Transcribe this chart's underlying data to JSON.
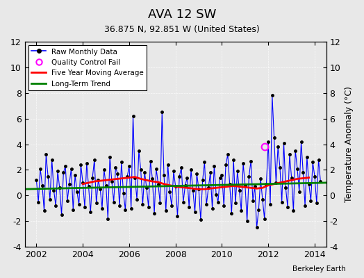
{
  "title": "AVA 12 SW",
  "subtitle": "36.875 N, 92.851 W (United States)",
  "credit": "Berkeley Earth",
  "ylabel": "Temperature Anomaly (°C)",
  "xlim": [
    2001.5,
    2014.5
  ],
  "ylim": [
    -4,
    12
  ],
  "yticks": [
    -4,
    -2,
    0,
    2,
    4,
    6,
    8,
    10,
    12
  ],
  "xticks": [
    2002,
    2004,
    2006,
    2008,
    2010,
    2012,
    2014
  ],
  "raw_color": "blue",
  "raw_marker_color": "black",
  "qc_color": "magenta",
  "moving_avg_color": "red",
  "trend_color": "green",
  "background_color": "#e8e8e8",
  "raw_data": {
    "times": [
      2002.0,
      2002.083,
      2002.167,
      2002.25,
      2002.333,
      2002.417,
      2002.5,
      2002.583,
      2002.667,
      2002.75,
      2002.833,
      2002.917,
      2003.0,
      2003.083,
      2003.167,
      2003.25,
      2003.333,
      2003.417,
      2003.5,
      2003.583,
      2003.667,
      2003.75,
      2003.833,
      2003.917,
      2004.0,
      2004.083,
      2004.167,
      2004.25,
      2004.333,
      2004.417,
      2004.5,
      2004.583,
      2004.667,
      2004.75,
      2004.833,
      2004.917,
      2005.0,
      2005.083,
      2005.167,
      2005.25,
      2005.333,
      2005.417,
      2005.5,
      2005.583,
      2005.667,
      2005.75,
      2005.833,
      2005.917,
      2006.0,
      2006.083,
      2006.167,
      2006.25,
      2006.333,
      2006.417,
      2006.5,
      2006.583,
      2006.667,
      2006.75,
      2006.833,
      2006.917,
      2007.0,
      2007.083,
      2007.167,
      2007.25,
      2007.333,
      2007.417,
      2007.5,
      2007.583,
      2007.667,
      2007.75,
      2007.833,
      2007.917,
      2008.0,
      2008.083,
      2008.167,
      2008.25,
      2008.333,
      2008.417,
      2008.5,
      2008.583,
      2008.667,
      2008.75,
      2008.833,
      2008.917,
      2009.0,
      2009.083,
      2009.167,
      2009.25,
      2009.333,
      2009.417,
      2009.5,
      2009.583,
      2009.667,
      2009.75,
      2009.833,
      2009.917,
      2010.0,
      2010.083,
      2010.167,
      2010.25,
      2010.333,
      2010.417,
      2010.5,
      2010.583,
      2010.667,
      2010.75,
      2010.833,
      2010.917,
      2011.0,
      2011.083,
      2011.167,
      2011.25,
      2011.333,
      2011.417,
      2011.5,
      2011.583,
      2011.667,
      2011.75,
      2011.833,
      2011.917,
      2012.0,
      2012.083,
      2012.167,
      2012.25,
      2012.333,
      2012.417,
      2012.5,
      2012.583,
      2012.667,
      2012.75,
      2012.833,
      2012.917,
      2013.0,
      2013.083,
      2013.167,
      2013.25,
      2013.333,
      2013.417,
      2013.5,
      2013.583,
      2013.667,
      2013.75,
      2013.833,
      2013.917,
      2014.0,
      2014.083,
      2014.167,
      2014.25
    ],
    "values": [
      1.2,
      -0.5,
      2.1,
      0.8,
      -1.2,
      3.2,
      1.5,
      -0.3,
      2.8,
      0.4,
      -0.8,
      1.9,
      0.6,
      -1.5,
      1.8,
      2.3,
      -0.4,
      0.9,
      2.1,
      -1.1,
      1.6,
      0.3,
      -0.7,
      2.4,
      1.0,
      -0.9,
      2.5,
      0.7,
      -1.3,
      1.4,
      2.8,
      -0.6,
      1.2,
      0.5,
      -1.0,
      2.0,
      0.8,
      -1.8,
      3.0,
      1.1,
      -0.5,
      2.2,
      1.7,
      -0.8,
      2.6,
      0.2,
      -1.1,
      1.5,
      2.3,
      -1.0,
      6.2,
      1.4,
      -0.3,
      3.5,
      2.0,
      -0.7,
      1.8,
      0.6,
      -0.9,
      2.7,
      1.3,
      -1.4,
      2.1,
      0.9,
      -0.6,
      6.5,
      1.6,
      -1.2,
      2.4,
      0.3,
      -0.8,
      1.9,
      0.7,
      -1.6,
      1.5,
      2.2,
      -0.5,
      0.8,
      1.4,
      -0.9,
      2.0,
      0.4,
      -1.3,
      1.7,
      0.5,
      -1.9,
      1.2,
      2.6,
      -0.7,
      0.6,
      1.8,
      -1.0,
      2.3,
      0.1,
      -0.5,
      1.4,
      1.6,
      -0.8,
      2.4,
      3.2,
      0.9,
      -1.4,
      2.8,
      -0.6,
      1.9,
      0.4,
      -1.2,
      2.5,
      0.8,
      -2.0,
      1.5,
      2.7,
      -0.4,
      0.7,
      -2.5,
      -1.1,
      1.3,
      -0.3,
      -1.8,
      0.9,
      4.2,
      -0.7,
      7.8,
      4.5,
      1.0,
      3.8,
      2.2,
      -0.5,
      4.1,
      0.6,
      -0.9,
      3.2,
      1.4,
      -1.2,
      3.5,
      2.1,
      0.3,
      4.2,
      1.8,
      -0.8,
      3.0,
      0.9,
      -0.4,
      2.6,
      1.5,
      -0.6,
      2.8,
      1.1
    ],
    "qc_fail_times": [
      2011.833
    ],
    "qc_fail_values": [
      3.8
    ]
  },
  "moving_avg": {
    "times": [
      2004.0,
      2004.25,
      2004.5,
      2004.75,
      2005.0,
      2005.25,
      2005.5,
      2005.75,
      2006.0,
      2006.25,
      2006.5,
      2006.75,
      2007.0,
      2007.25,
      2007.5,
      2007.75,
      2008.0,
      2008.25,
      2008.5,
      2008.75,
      2009.0,
      2009.25,
      2009.5,
      2009.75,
      2010.0,
      2010.25,
      2010.5,
      2010.75,
      2011.0,
      2011.25,
      2011.5,
      2011.75,
      2012.0,
      2012.25,
      2012.5,
      2012.75,
      2013.0,
      2013.25,
      2013.5,
      2013.75
    ],
    "values": [
      0.9,
      1.0,
      1.1,
      1.15,
      1.2,
      1.25,
      1.3,
      1.35,
      1.4,
      1.45,
      1.3,
      1.2,
      1.1,
      1.05,
      0.9,
      0.8,
      0.7,
      0.65,
      0.6,
      0.55,
      0.5,
      0.5,
      0.55,
      0.6,
      0.65,
      0.7,
      0.75,
      0.7,
      0.65,
      0.6,
      0.55,
      0.6,
      0.8,
      0.9,
      1.0,
      1.1,
      1.2,
      1.3,
      1.35,
      1.4
    ]
  },
  "trend": {
    "times": [
      2001.5,
      2014.5
    ],
    "values": [
      0.5,
      1.0
    ]
  }
}
